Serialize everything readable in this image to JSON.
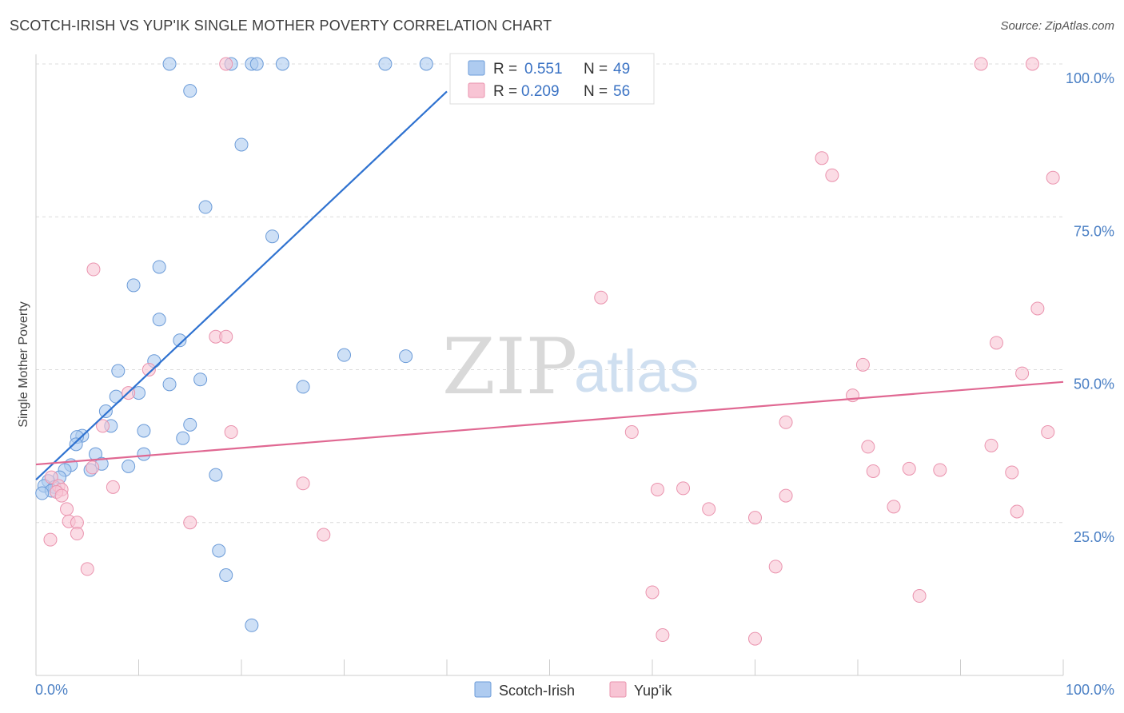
{
  "title": "SCOTCH-IRISH VS YUP'IK SINGLE MOTHER POVERTY CORRELATION CHART",
  "source": "Source: ZipAtlas.com",
  "watermark": {
    "zip": "ZIP",
    "atlas": "atlas"
  },
  "colors": {
    "blue_fill": "#aecbf0",
    "blue_stroke": "#6b9bd8",
    "blue_line": "#2f72d0",
    "pink_fill": "#f8c4d4",
    "pink_stroke": "#ea93ae",
    "pink_line": "#e06892",
    "grid": "#dcdcdc",
    "axis_label": "#4a7fc4"
  },
  "chart_data": {
    "type": "scatter",
    "title": "SCOTCH-IRISH VS YUP'IK SINGLE MOTHER POVERTY CORRELATION CHART",
    "xlabel": "",
    "ylabel": "Single Mother Poverty",
    "xlim": [
      0,
      100
    ],
    "ylim": [
      0,
      100
    ],
    "x_tick_labels": [
      "0.0%",
      "100.0%"
    ],
    "y_ticks": [
      25,
      50,
      75,
      100
    ],
    "y_tick_labels": [
      "25.0%",
      "50.0%",
      "75.0%",
      "100.0%"
    ],
    "grid": true,
    "legend_top": [
      {
        "r_label": "R =",
        "r_value": "0.551",
        "n_label": "N =",
        "n_value": "49"
      },
      {
        "r_label": "R =",
        "r_value": "0.209",
        "n_label": "N =",
        "n_value": "56"
      }
    ],
    "series": [
      {
        "name": "Scotch-Irish",
        "color": "#aecbf0",
        "points": [
          [
            13,
            100
          ],
          [
            19,
            100
          ],
          [
            21,
            100
          ],
          [
            21.5,
            100
          ],
          [
            24,
            100
          ],
          [
            34,
            100
          ],
          [
            38,
            100
          ],
          [
            15,
            95.6
          ],
          [
            20,
            86.8
          ],
          [
            16.5,
            76.6
          ],
          [
            23,
            71.8
          ],
          [
            12,
            66.8
          ],
          [
            9.5,
            63.8
          ],
          [
            12,
            58.2
          ],
          [
            14,
            54.8
          ],
          [
            11.5,
            51.4
          ],
          [
            8,
            49.8
          ],
          [
            16,
            48.4
          ],
          [
            13,
            47.6
          ],
          [
            26,
            47.2
          ],
          [
            30,
            52.4
          ],
          [
            36,
            52.2
          ],
          [
            10,
            46.2
          ],
          [
            7.8,
            45.6
          ],
          [
            6.8,
            43.2
          ],
          [
            7.3,
            40.8
          ],
          [
            10.5,
            40
          ],
          [
            15,
            41
          ],
          [
            14.3,
            38.8
          ],
          [
            4.5,
            39.2
          ],
          [
            4,
            39
          ],
          [
            3.9,
            37.8
          ],
          [
            5.8,
            36.2
          ],
          [
            10.5,
            36.2
          ],
          [
            6.4,
            34.6
          ],
          [
            9,
            34.2
          ],
          [
            3.4,
            34.4
          ],
          [
            5.3,
            33.6
          ],
          [
            2.8,
            33.6
          ],
          [
            2.3,
            32.4
          ],
          [
            17.5,
            32.8
          ],
          [
            1.2,
            31.8
          ],
          [
            0.8,
            31
          ],
          [
            1.8,
            30.8
          ],
          [
            1.5,
            30.2
          ],
          [
            0.6,
            29.8
          ],
          [
            17.8,
            20.4
          ],
          [
            18.5,
            16.4
          ],
          [
            21,
            8.2
          ]
        ]
      },
      {
        "name": "Yup'ik",
        "color": "#f8c4d4",
        "points": [
          [
            18.5,
            100
          ],
          [
            92,
            100
          ],
          [
            97,
            100
          ],
          [
            76.5,
            84.6
          ],
          [
            77.5,
            81.8
          ],
          [
            99,
            81.4
          ],
          [
            5.6,
            66.4
          ],
          [
            55,
            61.8
          ],
          [
            97.5,
            60
          ],
          [
            17.5,
            55.4
          ],
          [
            18.5,
            55.4
          ],
          [
            93.5,
            54.4
          ],
          [
            11,
            50
          ],
          [
            80.5,
            50.8
          ],
          [
            96,
            49.4
          ],
          [
            9,
            46.2
          ],
          [
            79.5,
            45.8
          ],
          [
            73,
            41.4
          ],
          [
            6.5,
            40.8
          ],
          [
            19,
            39.8
          ],
          [
            58,
            39.8
          ],
          [
            98.5,
            39.8
          ],
          [
            81,
            37.4
          ],
          [
            93,
            37.6
          ],
          [
            5.5,
            34
          ],
          [
            85,
            33.8
          ],
          [
            88,
            33.6
          ],
          [
            81.5,
            33.4
          ],
          [
            95,
            33.2
          ],
          [
            1.5,
            32.4
          ],
          [
            2.2,
            31
          ],
          [
            2.5,
            30.4
          ],
          [
            7.5,
            30.8
          ],
          [
            26,
            31.4
          ],
          [
            60.5,
            30.4
          ],
          [
            63,
            30.6
          ],
          [
            2,
            30
          ],
          [
            73,
            29.4
          ],
          [
            2.5,
            29.4
          ],
          [
            70,
            25.8
          ],
          [
            65.5,
            27.2
          ],
          [
            83.5,
            27.6
          ],
          [
            95.5,
            26.8
          ],
          [
            3,
            27.2
          ],
          [
            3.2,
            25.2
          ],
          [
            4,
            25
          ],
          [
            15,
            25
          ],
          [
            28,
            23
          ],
          [
            4,
            23.2
          ],
          [
            1.4,
            22.2
          ],
          [
            5,
            17.4
          ],
          [
            72,
            17.8
          ],
          [
            60,
            13.6
          ],
          [
            86,
            13
          ],
          [
            61,
            6.6
          ],
          [
            70,
            6
          ]
        ]
      }
    ],
    "trend_lines": [
      {
        "series": "Scotch-Irish",
        "x": [
          0,
          40
        ],
        "y": [
          32,
          95.5
        ]
      },
      {
        "series": "Yup'ik",
        "x": [
          0,
          100
        ],
        "y": [
          34.5,
          48
        ]
      }
    ]
  },
  "bottom_legend": [
    {
      "label": "Scotch-Irish"
    },
    {
      "label": "Yup'ik"
    }
  ]
}
